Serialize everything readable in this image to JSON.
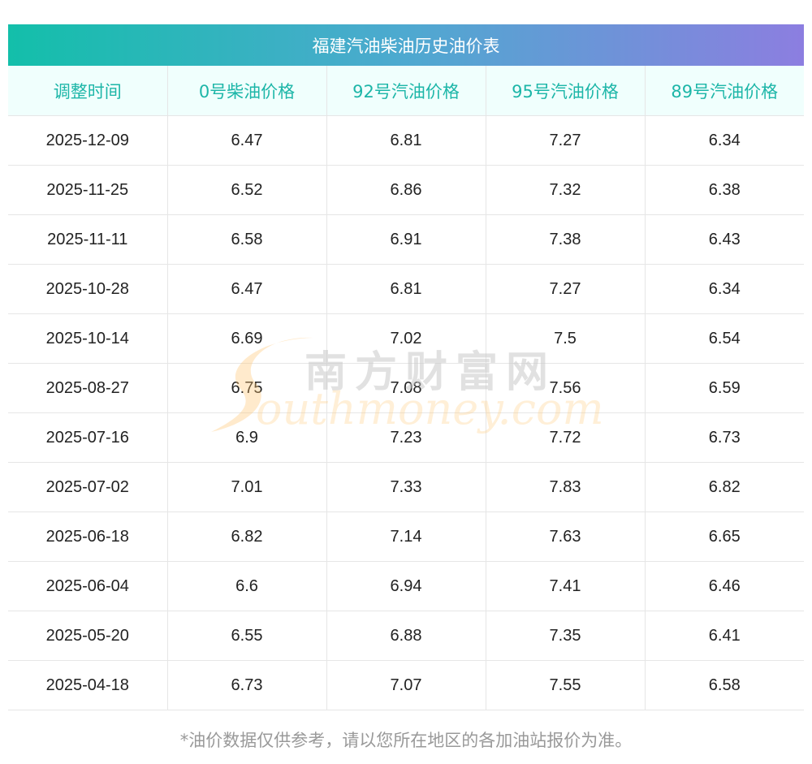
{
  "title": "福建汽油柴油历史油价表",
  "columns": [
    "调整时间",
    "0号柴油价格",
    "92号汽油价格",
    "95号汽油价格",
    "89号汽油价格"
  ],
  "rows": [
    [
      "2025-12-09",
      "6.47",
      "6.81",
      "7.27",
      "6.34"
    ],
    [
      "2025-11-25",
      "6.52",
      "6.86",
      "7.32",
      "6.38"
    ],
    [
      "2025-11-11",
      "6.58",
      "6.91",
      "7.38",
      "6.43"
    ],
    [
      "2025-10-28",
      "6.47",
      "6.81",
      "7.27",
      "6.34"
    ],
    [
      "2025-10-14",
      "6.69",
      "7.02",
      "7.5",
      "6.54"
    ],
    [
      "2025-08-27",
      "6.75",
      "7.08",
      "7.56",
      "6.59"
    ],
    [
      "2025-07-16",
      "6.9",
      "7.23",
      "7.72",
      "6.73"
    ],
    [
      "2025-07-02",
      "7.01",
      "7.33",
      "7.83",
      "6.82"
    ],
    [
      "2025-06-18",
      "6.82",
      "7.14",
      "7.63",
      "6.65"
    ],
    [
      "2025-06-04",
      "6.6",
      "6.94",
      "7.41",
      "6.46"
    ],
    [
      "2025-05-20",
      "6.55",
      "6.88",
      "7.35",
      "6.41"
    ],
    [
      "2025-04-18",
      "6.73",
      "7.07",
      "7.55",
      "6.58"
    ]
  ],
  "footnote": "*油价数据仅供参考，请以您所在地区的各加油站报价为准。",
  "watermark": {
    "cn": "南方财富网",
    "en": "outhmoney.com"
  },
  "colors": {
    "header_text": "#1db6a8",
    "title_gradient_start": "#13bfaa",
    "title_gradient_end": "#8c7ee0",
    "footnote": "#999999"
  }
}
